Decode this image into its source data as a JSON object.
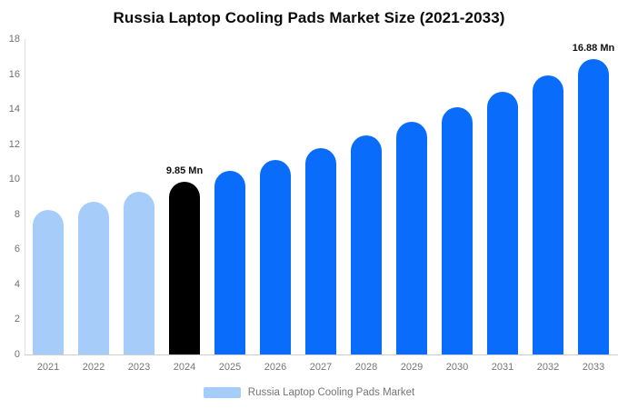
{
  "title": "Russia Laptop Cooling Pads Market Size (2021-2033)",
  "legend": {
    "label": "Russia Laptop Cooling Pads Market",
    "swatch_color": "#a6cdf9"
  },
  "colors": {
    "historical_bar": "#a6cdf9",
    "base_year_bar": "#000000",
    "forecast_bar": "#0a6cfa",
    "axis_line": "#e2e2e2",
    "x_axis_line": "#cfcfcf",
    "tick_text": "#707070",
    "x_label_text": "#757575",
    "data_label_text": "#111111",
    "title_text": "#0a0a0a"
  },
  "chart_data": {
    "type": "bar",
    "title": "Russia Laptop Cooling Pads Market Size (2021-2033)",
    "categories": [
      "2021",
      "2022",
      "2023",
      "2024",
      "2025",
      "2026",
      "2027",
      "2028",
      "2029",
      "2030",
      "2031",
      "2032",
      "2033"
    ],
    "values": [
      8.23,
      8.74,
      9.28,
      9.85,
      10.46,
      11.1,
      11.79,
      12.52,
      13.29,
      14.11,
      14.98,
      15.9,
      16.88
    ],
    "unit": "Mn",
    "bar_colors": [
      "#a6cdf9",
      "#a6cdf9",
      "#a6cdf9",
      "#000000",
      "#0a6cfa",
      "#0a6cfa",
      "#0a6cfa",
      "#0a6cfa",
      "#0a6cfa",
      "#0a6cfa",
      "#0a6cfa",
      "#0a6cfa",
      "#0a6cfa"
    ],
    "data_labels": [
      "",
      "",
      "",
      "9.85 Mn",
      "",
      "",
      "",
      "",
      "",
      "",
      "",
      "",
      "16.88 Mn"
    ],
    "xlabel": "",
    "ylabel": "",
    "ylim": [
      0,
      18
    ],
    "y_ticks": [
      0,
      2,
      4,
      6,
      8,
      10,
      12,
      14,
      16,
      18
    ],
    "grid": false,
    "legend_position": "bottom"
  }
}
